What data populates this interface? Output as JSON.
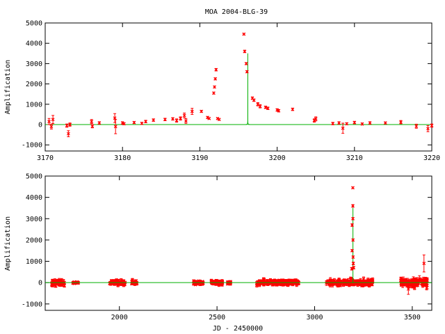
{
  "chart_data": [
    {
      "type": "scatter",
      "title": "MOA 2004-BLG-39",
      "xlabel": "",
      "ylabel": "Amplification",
      "xlim": [
        3170,
        3220
      ],
      "ylim": [
        -1300,
        5000
      ],
      "xticks": [
        3170,
        3180,
        3190,
        3200,
        3210,
        3220
      ],
      "yticks": [
        -1000,
        0,
        1000,
        2000,
        3000,
        4000,
        5000
      ],
      "grid": false,
      "colors": {
        "data": "#ff0000",
        "model": "#00b000"
      },
      "series": [
        {
          "kind": "points",
          "points": [
            {
              "x": 3170.5,
              "y": 150,
              "err": 150
            },
            {
              "x": 3170.8,
              "y": -100,
              "err": 120
            },
            {
              "x": 3171.0,
              "y": 250,
              "err": 200
            },
            {
              "x": 3172.8,
              "y": -50,
              "err": 80
            },
            {
              "x": 3173.0,
              "y": -450,
              "err": 150
            },
            {
              "x": 3173.2,
              "y": 0,
              "err": 80
            },
            {
              "x": 3176.0,
              "y": 150,
              "err": 100
            },
            {
              "x": 3176.1,
              "y": -80,
              "err": 80
            },
            {
              "x": 3177.0,
              "y": 80,
              "err": 60
            },
            {
              "x": 3179.0,
              "y": 320,
              "err": 220
            },
            {
              "x": 3179.1,
              "y": -100,
              "err": 350
            },
            {
              "x": 3180.0,
              "y": 80,
              "err": 60
            },
            {
              "x": 3180.2,
              "y": 40,
              "err": 50
            },
            {
              "x": 3181.5,
              "y": 100,
              "err": 50
            },
            {
              "x": 3182.5,
              "y": 60,
              "err": 50
            },
            {
              "x": 3183.0,
              "y": 150,
              "err": 60
            },
            {
              "x": 3184.0,
              "y": 220,
              "err": 60
            },
            {
              "x": 3185.5,
              "y": 250,
              "err": 60
            },
            {
              "x": 3186.5,
              "y": 280,
              "err": 60
            },
            {
              "x": 3187.0,
              "y": 200,
              "err": 80
            },
            {
              "x": 3187.5,
              "y": 300,
              "err": 80
            },
            {
              "x": 3188.0,
              "y": 450,
              "err": 120
            },
            {
              "x": 3188.2,
              "y": 180,
              "err": 120
            },
            {
              "x": 3189.0,
              "y": 650,
              "err": 150
            },
            {
              "x": 3190.2,
              "y": 650,
              "err": 50
            },
            {
              "x": 3191.0,
              "y": 350,
              "err": 50
            },
            {
              "x": 3191.2,
              "y": 300,
              "err": 40
            },
            {
              "x": 3191.8,
              "y": 1550,
              "err": 50
            },
            {
              "x": 3191.9,
              "y": 1850,
              "err": 50
            },
            {
              "x": 3192.0,
              "y": 2250,
              "err": 50
            },
            {
              "x": 3192.1,
              "y": 2700,
              "err": 60
            },
            {
              "x": 3192.3,
              "y": 300,
              "err": 40
            },
            {
              "x": 3192.5,
              "y": 250,
              "err": 40
            },
            {
              "x": 3195.7,
              "y": 4450,
              "err": 40
            },
            {
              "x": 3195.8,
              "y": 3600,
              "err": 60
            },
            {
              "x": 3196.0,
              "y": 3000,
              "err": 50
            },
            {
              "x": 3196.1,
              "y": 2600,
              "err": 50
            },
            {
              "x": 3196.8,
              "y": 1300,
              "err": 60
            },
            {
              "x": 3197.0,
              "y": 1200,
              "err": 60
            },
            {
              "x": 3197.5,
              "y": 1000,
              "err": 80
            },
            {
              "x": 3197.8,
              "y": 900,
              "err": 80
            },
            {
              "x": 3198.5,
              "y": 850,
              "err": 60
            },
            {
              "x": 3198.8,
              "y": 800,
              "err": 60
            },
            {
              "x": 3200.0,
              "y": 720,
              "err": 60
            },
            {
              "x": 3200.2,
              "y": 680,
              "err": 60
            },
            {
              "x": 3202.0,
              "y": 750,
              "err": 60
            },
            {
              "x": 3204.8,
              "y": 200,
              "err": 80
            },
            {
              "x": 3205.0,
              "y": 280,
              "err": 100
            },
            {
              "x": 3207.2,
              "y": 50,
              "err": 60
            },
            {
              "x": 3208.0,
              "y": 80,
              "err": 60
            },
            {
              "x": 3208.5,
              "y": -180,
              "err": 250
            },
            {
              "x": 3209.0,
              "y": 40,
              "err": 50
            },
            {
              "x": 3210.0,
              "y": 100,
              "err": 60
            },
            {
              "x": 3211.0,
              "y": 30,
              "err": 50
            },
            {
              "x": 3212.0,
              "y": 80,
              "err": 60
            },
            {
              "x": 3214.0,
              "y": 80,
              "err": 50
            },
            {
              "x": 3216.0,
              "y": 120,
              "err": 80
            },
            {
              "x": 3218.0,
              "y": -80,
              "err": 100
            },
            {
              "x": 3219.5,
              "y": -200,
              "err": 150
            },
            {
              "x": 3220.0,
              "y": -50,
              "err": 80
            }
          ]
        },
        {
          "kind": "model",
          "t0": 3196.2,
          "u0": 0.000285,
          "tE": 1.0,
          "baseline": 0
        }
      ]
    },
    {
      "type": "scatter",
      "title": "",
      "xlabel": "JD - 2450000",
      "ylabel": "Amplification",
      "xlim": [
        1620,
        3600
      ],
      "ylim": [
        -1300,
        5000
      ],
      "xticks": [
        2000,
        2500,
        3000,
        3500
      ],
      "yticks": [
        -1000,
        0,
        1000,
        2000,
        3000,
        4000,
        5000
      ],
      "grid": false,
      "colors": {
        "data": "#ff0000",
        "model": "#00b000"
      },
      "series": [
        {
          "kind": "bands",
          "bands": [
            {
              "start": 1650,
              "end": 1720,
              "sigma": 80
            },
            {
              "start": 1760,
              "end": 1790,
              "sigma": 30
            },
            {
              "start": 1950,
              "end": 2030,
              "sigma": 60
            },
            {
              "start": 2060,
              "end": 2090,
              "sigma": 60
            },
            {
              "start": 2380,
              "end": 2430,
              "sigma": 50
            },
            {
              "start": 2470,
              "end": 2530,
              "sigma": 60
            },
            {
              "start": 2550,
              "end": 2570,
              "sigma": 40
            },
            {
              "start": 2700,
              "end": 2920,
              "sigma": 70
            },
            {
              "start": 3060,
              "end": 3300,
              "sigma": 80
            },
            {
              "start": 3440,
              "end": 3580,
              "sigma": 110
            }
          ]
        },
        {
          "kind": "points",
          "points": [
            {
              "x": 3192,
              "y": 2700,
              "err": 60
            },
            {
              "x": 3195.7,
              "y": 4450,
              "err": 40
            },
            {
              "x": 3195.8,
              "y": 3600,
              "err": 60
            },
            {
              "x": 3196,
              "y": 3000,
              "err": 50
            },
            {
              "x": 3196.5,
              "y": 2000,
              "err": 50
            },
            {
              "x": 3197,
              "y": 1200,
              "err": 50
            },
            {
              "x": 3198,
              "y": 900,
              "err": 60
            },
            {
              "x": 3200,
              "y": 700,
              "err": 60
            },
            {
              "x": 3190,
              "y": 650,
              "err": 60
            },
            {
              "x": 3192,
              "y": 1500,
              "err": 50
            },
            {
              "x": 3560,
              "y": 900,
              "err": 400
            },
            {
              "x": 3480,
              "y": -300,
              "err": 250
            }
          ]
        },
        {
          "kind": "model",
          "t0": 3196.2,
          "u0": 0.000285,
          "tE": 1.0,
          "baseline": 0
        }
      ]
    }
  ]
}
